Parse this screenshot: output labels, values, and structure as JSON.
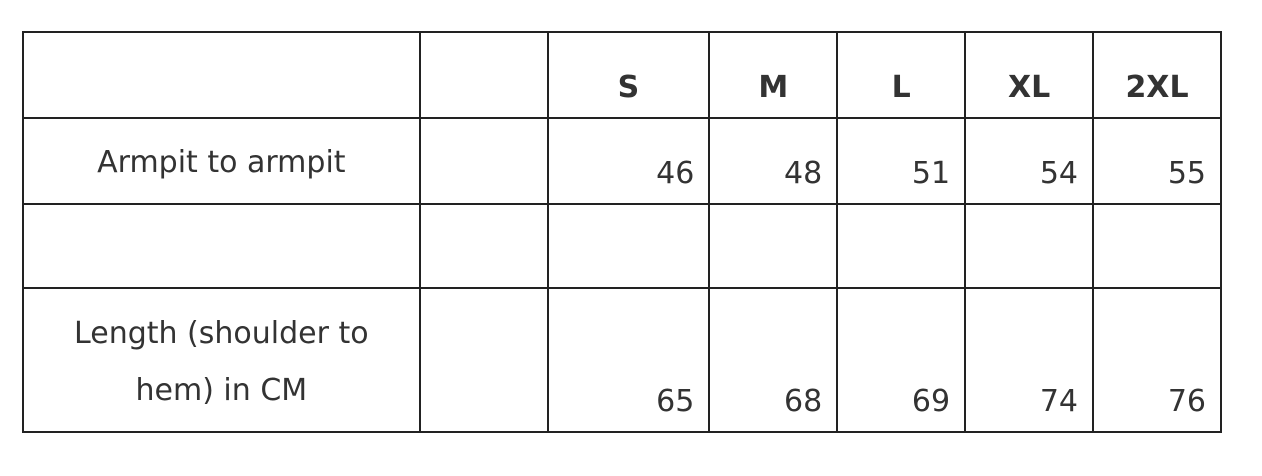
{
  "table": {
    "headers": [
      "",
      "",
      "S",
      "M",
      "L",
      "XL",
      "2XL"
    ],
    "rows": [
      {
        "label": "Armpit to armpit",
        "values": [
          "46",
          "48",
          "51",
          "54",
          "55"
        ]
      },
      {
        "label": "",
        "values": [
          "",
          "",
          "",
          "",
          ""
        ]
      },
      {
        "label": "Length (shoulder to hem) in CM",
        "values": [
          "65",
          "68",
          "69",
          "74",
          "76"
        ]
      }
    ]
  }
}
